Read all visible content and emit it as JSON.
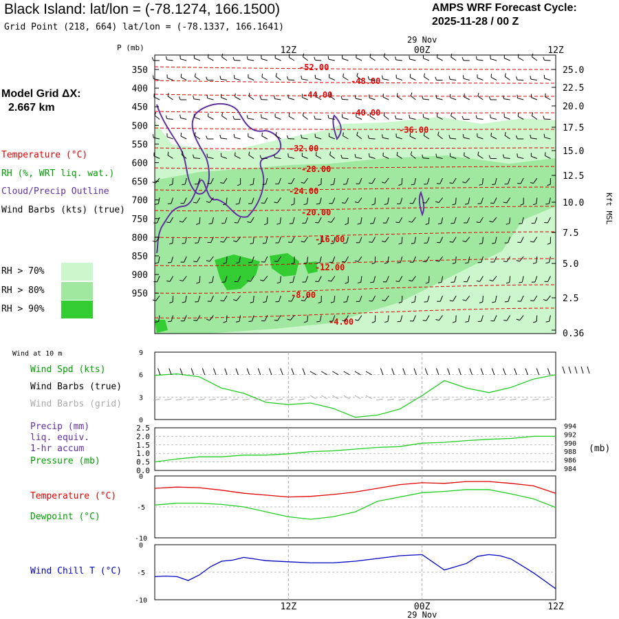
{
  "header": {
    "title": "Black Island:  lat/lon = (-78.1274, 166.1500)",
    "grid_point": "Grid Point (218, 664) lat/lon = (-78.1337, 166.1641)",
    "forecast_line1": "AMPS WRF Forecast Cycle:",
    "forecast_line2": "2025-11-28 / 00  Z"
  },
  "left_legend": {
    "model_grid_label": "Model Grid ΔX:",
    "model_grid_value": "2.667 km",
    "temperature": "Temperature (°C)",
    "rh": "RH (%, WRT liq. wat.)",
    "cloud": "Cloud/Precip Outline",
    "wind_barbs": "Wind Barbs (kts) (true)",
    "rh70": "RH > 70%",
    "rh80": "RH > 80%",
    "rh90": "RH > 90%"
  },
  "colors": {
    "temperature": "#e00000",
    "rh_text": "#00a000",
    "cloud": "#6030a0",
    "rh70": "#ccf7cc",
    "rh80": "#a0e8a0",
    "rh90": "#33cc33",
    "wind_speed": "#22cc22",
    "dewpoint": "#22cc22",
    "pressure": "#22cc22",
    "wind_chill": "#0000c0",
    "grid_barbs": "#aaaaaa"
  },
  "time_axis": {
    "ticks": [
      "12Z",
      "00Z",
      "12Z"
    ],
    "date_label": "29 Nov"
  },
  "bottom_labels": {
    "wind_at_10m": "Wind at 10 m",
    "wind_spd": "Wind Spd (kts)",
    "wind_barbs_true": "Wind Barbs (true)",
    "wind_barbs_grid": "Wind Barbs (grid)",
    "precip1": "Precip (mm)",
    "precip2": "liq. equiv.",
    "precip3": "1-hr accum",
    "pressure": "Pressure (mb)",
    "pressure_unit": "(mb)",
    "temperature": "Temperature (°C)",
    "dewpoint": "Dewpoint (°C)",
    "wind_chill": "Wind Chill T (°C)"
  },
  "chart_data": [
    {
      "type": "heatmap",
      "y_left_label": "P (mb)",
      "y_left_ticks": [
        350,
        400,
        450,
        500,
        550,
        600,
        650,
        700,
        750,
        800,
        850,
        900,
        950
      ],
      "y_right_label": "Kft MSL",
      "y_right_ticks": [
        "25.0",
        "22.5",
        "20.0",
        "17.5",
        "15.0",
        "12.5",
        "10.0",
        "7.5",
        "5.0",
        "2.5",
        "0.36"
      ],
      "temperature_contours": [
        "-52.00",
        "-48.00",
        "-44.00",
        "-40.00",
        "-36.00",
        "-32.00",
        "-28.00",
        "-24.00",
        "-20.00",
        "-16.00",
        "-12.00",
        "-8.00",
        "-4.00"
      ]
    },
    {
      "type": "line",
      "name": "wind_speed",
      "y_ticks": [
        "9",
        "6",
        "3",
        "0"
      ],
      "ylim": [
        0,
        9
      ],
      "x_hours": [
        0,
        2,
        4,
        6,
        8,
        10,
        12,
        14,
        16,
        18,
        20,
        22,
        24,
        26,
        28,
        30,
        32,
        34,
        36
      ],
      "values": [
        5.9,
        6.1,
        5.7,
        4.2,
        3.5,
        2.3,
        2.0,
        2.2,
        1.5,
        0.3,
        0.6,
        1.4,
        3.2,
        5.2,
        4.2,
        3.6,
        4.3,
        5.4,
        6.0
      ]
    },
    {
      "type": "line",
      "name": "precip_pressure",
      "y_left_ticks": [
        "2.5",
        "2.0",
        "1.5",
        "1.0",
        "0.5",
        "0.0"
      ],
      "y_right_ticks": [
        "994",
        "992",
        "990",
        "988",
        "986",
        "984"
      ],
      "ylim_pressure": [
        984,
        994
      ],
      "x_hours": [
        0,
        2,
        4,
        6,
        8,
        10,
        12,
        14,
        16,
        18,
        20,
        22,
        24,
        26,
        28,
        30,
        32,
        34,
        36
      ],
      "pressure_values": [
        986.0,
        986.7,
        987.2,
        987.2,
        987.6,
        987.6,
        987.9,
        988.4,
        988.6,
        989.0,
        989.4,
        989.6,
        990.4,
        990.6,
        991.0,
        991.3,
        991.5,
        992.0,
        992.0
      ]
    },
    {
      "type": "line",
      "name": "temperature_dewpoint",
      "y_ticks": [
        "0",
        "-5",
        "-10"
      ],
      "ylim": [
        -10,
        0
      ],
      "x_hours": [
        0,
        2,
        4,
        6,
        8,
        10,
        12,
        14,
        16,
        18,
        20,
        22,
        24,
        26,
        28,
        30,
        32,
        34,
        36
      ],
      "temperature": [
        -2.0,
        -1.8,
        -1.9,
        -2.3,
        -2.8,
        -3.1,
        -3.4,
        -3.3,
        -3.0,
        -2.6,
        -2.0,
        -1.4,
        -1.1,
        -1.2,
        -0.9,
        -0.9,
        -1.2,
        -1.6,
        -2.8
      ],
      "dewpoint": [
        -4.7,
        -4.4,
        -4.4,
        -4.6,
        -5.0,
        -5.8,
        -6.6,
        -7.0,
        -6.6,
        -5.8,
        -4.1,
        -3.4,
        -2.7,
        -2.5,
        -2.2,
        -2.2,
        -2.9,
        -3.7,
        -5.1
      ]
    },
    {
      "type": "line",
      "name": "wind_chill",
      "y_ticks": [
        "0",
        "-5",
        "-10"
      ],
      "ylim": [
        -10,
        0
      ],
      "x_hours": [
        0,
        1,
        2,
        3,
        4,
        5,
        6,
        7,
        8,
        10,
        12,
        14,
        16,
        18,
        20,
        22,
        24,
        26,
        28,
        29,
        30,
        31,
        32,
        34,
        36
      ],
      "values": [
        -5.8,
        -5.7,
        -5.8,
        -6.5,
        -5.5,
        -4.0,
        -3.0,
        -2.8,
        -2.3,
        -2.9,
        -3.1,
        -3.3,
        -3.3,
        -3.0,
        -2.5,
        -2.0,
        -1.8,
        -4.6,
        -3.4,
        -2.1,
        -1.8,
        -2.0,
        -2.6,
        -5.1,
        -8.0
      ]
    }
  ]
}
